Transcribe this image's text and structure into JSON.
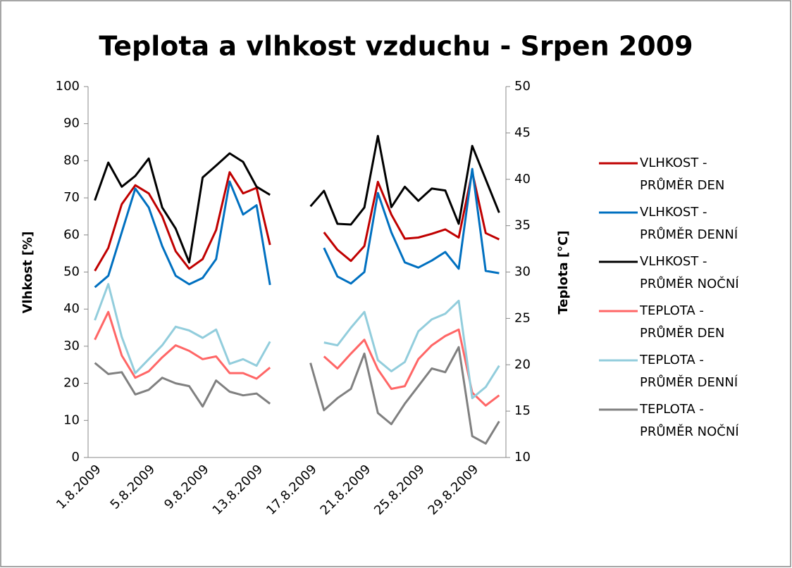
{
  "chart_data": {
    "type": "line",
    "title": "Teplota a vlhkost vzduchu - Srpen 2009",
    "y_label": "Vlhkost [%]",
    "y2_label": "Teplota [°C]",
    "categories": [
      "1.8.2009",
      null,
      null,
      null,
      "5.8.2009",
      null,
      null,
      null,
      "9.8.2009",
      null,
      null,
      null,
      "13.8.2009",
      null,
      null,
      null,
      "17.8.2009",
      null,
      null,
      null,
      "21.8.2009",
      null,
      null,
      null,
      "25.8.2009",
      null,
      null,
      null,
      "29.8.2009",
      null,
      null
    ],
    "ylim": [
      0,
      100
    ],
    "yticks": [
      0,
      10,
      20,
      30,
      40,
      50,
      60,
      70,
      80,
      90,
      100
    ],
    "y2lim": [
      10,
      50
    ],
    "y2ticks": [
      10,
      15,
      20,
      25,
      30,
      35,
      40,
      45,
      50
    ],
    "grid": false,
    "legend": "right",
    "series": [
      {
        "name": "VLHKOST - PRŮMĚR DEN",
        "color": "#c00000",
        "values": [
          50.3,
          56.5,
          68.3,
          73.4,
          71.2,
          65,
          55.6,
          50.9,
          53.5,
          61.3,
          76.9,
          71.2,
          72.7,
          57.3,
          null,
          null,
          null,
          60.7,
          56,
          53,
          57,
          74.3,
          65.5,
          59,
          59.3,
          60.3,
          61.5,
          59.3,
          77,
          60.5,
          58.8
        ]
      },
      {
        "name": "VLHKOST - PRŮMĚR DENNÍ",
        "color": "#0070c0",
        "values": [
          45.9,
          49,
          60.7,
          72.5,
          67.4,
          57,
          49,
          46.7,
          48.4,
          53.5,
          74.4,
          65.5,
          68,
          46.5,
          null,
          null,
          null,
          56.5,
          48.8,
          46.9,
          50,
          71.3,
          60.7,
          52.6,
          51.2,
          53.1,
          55.4,
          50.9,
          77.8,
          50.3,
          49.7
        ]
      },
      {
        "name": "VLHKOST - PRŮMĚR NOČNÍ",
        "color": "#000000",
        "values": [
          69.3,
          79.5,
          73,
          75.9,
          80.6,
          67.4,
          61.7,
          52.6,
          75.5,
          78.7,
          82,
          79.7,
          73,
          70.8,
          null,
          null,
          67.7,
          71.9,
          63,
          62.8,
          67.4,
          86.7,
          67.5,
          73,
          69.2,
          72.5,
          72,
          63,
          84,
          75,
          66
        ]
      },
      {
        "name": "TEPLOTA - PRŮMĚR DEN",
        "color": "#ff6666",
        "axis": "y2",
        "values": [
          22.7,
          25.7,
          21,
          18.6,
          19.3,
          20.8,
          22.1,
          21.5,
          20.6,
          20.9,
          19.1,
          19.1,
          18.5,
          19.7,
          null,
          null,
          null,
          20.9,
          19.6,
          21.2,
          22.7,
          19.5,
          17.4,
          17.7,
          20.6,
          22.1,
          23.1,
          23.8,
          17,
          15.6,
          16.7
        ]
      },
      {
        "name": "TEPLOTA - PRŮMĚR DENNÍ",
        "color": "#92cddc",
        "axis": "y2",
        "values": [
          24.8,
          28.7,
          23,
          19.1,
          20.6,
          22.1,
          24.1,
          23.7,
          22.9,
          23.8,
          20.1,
          20.6,
          19.9,
          22.5,
          null,
          null,
          null,
          22.4,
          22.1,
          24,
          25.7,
          20.5,
          19.3,
          20.3,
          23.6,
          24.9,
          25.5,
          26.9,
          16.4,
          17.6,
          19.9
        ]
      },
      {
        "name": "TEPLOTA - PRŮMĚR NOČNÍ",
        "color": "#808080",
        "axis": "y2",
        "values": [
          20.2,
          19,
          19.2,
          16.8,
          17.3,
          18.6,
          18,
          17.7,
          15.5,
          18.3,
          17.1,
          16.7,
          16.9,
          15.8,
          null,
          null,
          20.2,
          15.1,
          16.4,
          17.4,
          21.2,
          14.8,
          13.6,
          15.8,
          17.7,
          19.6,
          19.2,
          21.9,
          12.3,
          11.5,
          13.9
        ]
      }
    ]
  }
}
